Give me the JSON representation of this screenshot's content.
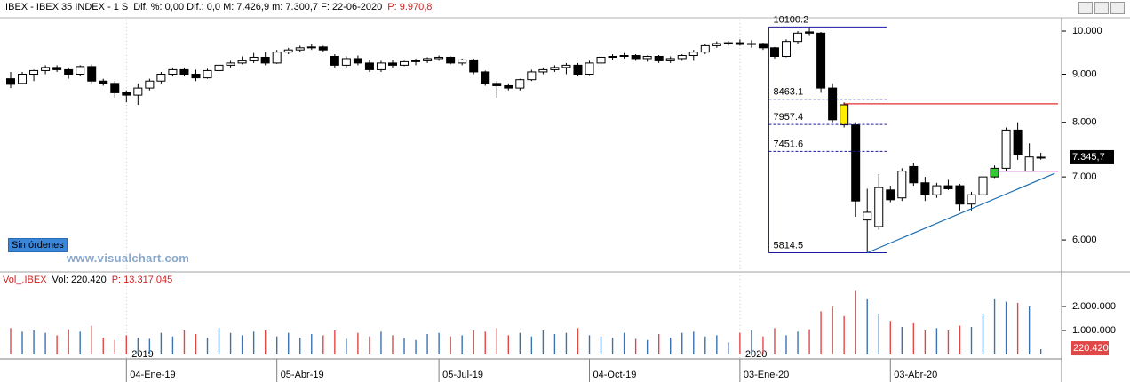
{
  "header": {
    "symbol": ".IBEX - IBEX 35 INDEX - 1 S",
    "stats": "Dif. %: 0,00  Dif.: 0,0  M: 7.426,9  m: 7.300,7  F: 22-06-2020",
    "prev": "P: 9.970,8"
  },
  "volume_header": {
    "name": "Vol_.IBEX",
    "last": "Vol: 220.420",
    "prev": "P: 13.317.045"
  },
  "button": "Sin órdenes",
  "watermark": "www.visualchart.com",
  "chart_data": {
    "type": "candlestick",
    "ylog": true,
    "x": [
      null,
      null,
      null,
      null,
      null,
      null,
      null,
      null,
      null,
      null,
      "04-Ene-19",
      null,
      null,
      null,
      null,
      null,
      null,
      null,
      null,
      null,
      null,
      null,
      null,
      "05-Abr-19",
      null,
      null,
      null,
      null,
      null,
      null,
      null,
      null,
      null,
      null,
      null,
      null,
      null,
      "05-Jul-19",
      null,
      null,
      null,
      null,
      null,
      null,
      null,
      null,
      null,
      null,
      null,
      null,
      "04-Oct-19",
      null,
      null,
      null,
      null,
      null,
      null,
      null,
      null,
      null,
      null,
      null,
      null,
      "03-Ene-20",
      null,
      null,
      null,
      null,
      null,
      null,
      null,
      null,
      null,
      null,
      null,
      null,
      "03-Abr-20",
      null,
      null,
      null,
      null,
      null,
      null,
      null,
      null,
      null,
      null,
      null,
      null,
      null
    ],
    "years": [
      {
        "label": "2019",
        "index": 10
      },
      {
        "label": "2020",
        "index": 63
      }
    ],
    "open": [
      8900,
      8800,
      9000,
      9080,
      9150,
      9100,
      9000,
      9170,
      8850,
      8800,
      8600,
      8550,
      8700,
      8850,
      9000,
      9100,
      9000,
      8920,
      9080,
      9200,
      9250,
      9300,
      9380,
      9250,
      9500,
      9550,
      9600,
      9620,
      9400,
      9200,
      9350,
      9250,
      9100,
      9250,
      9200,
      9280,
      9300,
      9350,
      9380,
      9250,
      9320,
      9050,
      8800,
      8750,
      8700,
      8880,
      9050,
      9100,
      9150,
      9200,
      9000,
      9250,
      9380,
      9400,
      9420,
      9350,
      9400,
      9300,
      9350,
      9420,
      9500,
      9650,
      9700,
      9720,
      9680,
      9700,
      9600,
      9400,
      9750,
      9980,
      9950,
      8700,
      8350,
      7950,
      6300,
      6200,
      6780,
      6650,
      7180,
      6900,
      6700,
      6850,
      6850,
      6550,
      6700,
      7000,
      7150,
      7850,
      7100,
      7345.7
    ],
    "high": [
      9050,
      9050,
      9100,
      9200,
      9200,
      9150,
      9200,
      9220,
      8900,
      8850,
      8650,
      8800,
      8900,
      9050,
      9150,
      9150,
      9100,
      9120,
      9220,
      9300,
      9400,
      9480,
      9500,
      9550,
      9600,
      9650,
      9680,
      9650,
      9450,
      9400,
      9420,
      9320,
      9300,
      9320,
      9300,
      9350,
      9380,
      9420,
      9400,
      9350,
      9350,
      9080,
      8850,
      8800,
      8900,
      9100,
      9150,
      9200,
      9250,
      9250,
      9300,
      9400,
      9450,
      9480,
      9450,
      9420,
      9430,
      9400,
      9450,
      9550,
      9700,
      9750,
      9760,
      9800,
      9780,
      9720,
      9620,
      9800,
      10000,
      10100.2,
      9980,
      8800,
      8400,
      8000,
      6800,
      7050,
      6850,
      7150,
      7250,
      7000,
      6900,
      6950,
      6880,
      6750,
      7050,
      7200,
      7900,
      8000,
      7600,
      7426.9
    ],
    "low": [
      8700,
      8780,
      8850,
      9000,
      9050,
      8900,
      8950,
      8800,
      8750,
      8500,
      8400,
      8350,
      8650,
      8800,
      8950,
      8950,
      8850,
      8900,
      9050,
      9150,
      9220,
      9250,
      9200,
      9230,
      9450,
      9500,
      9550,
      9500,
      9150,
      9150,
      9200,
      9050,
      9050,
      9150,
      9180,
      9200,
      9250,
      9300,
      9220,
      9200,
      9000,
      8750,
      8500,
      8650,
      8650,
      8850,
      9000,
      9050,
      9000,
      8950,
      8980,
      9200,
      9320,
      9350,
      9300,
      9280,
      9250,
      9250,
      9300,
      9300,
      9450,
      9600,
      9650,
      9650,
      9600,
      9550,
      9350,
      9380,
      9700,
      9900,
      8600,
      8000,
      7900,
      6350,
      5814.5,
      6150,
      6580,
      6600,
      6850,
      6600,
      6650,
      6780,
      6450,
      6450,
      6650,
      6980,
      7100,
      7300,
      7100,
      7300.7
    ],
    "close": [
      8780,
      9000,
      9080,
      9150,
      9100,
      9000,
      9170,
      8850,
      8800,
      8600,
      8550,
      8700,
      8850,
      9000,
      9100,
      9000,
      8920,
      9080,
      9200,
      9250,
      9300,
      9380,
      9250,
      9500,
      9550,
      9600,
      9620,
      9550,
      9200,
      9350,
      9250,
      9100,
      9250,
      9200,
      9280,
      9300,
      9350,
      9380,
      9250,
      9320,
      9050,
      8800,
      8750,
      8700,
      8880,
      9050,
      9100,
      9150,
      9200,
      9000,
      9250,
      9380,
      9400,
      9420,
      9350,
      9400,
      9300,
      9350,
      9420,
      9500,
      9650,
      9700,
      9720,
      9680,
      9700,
      9600,
      9400,
      9750,
      9950,
      9950,
      8700,
      8050,
      7950,
      6600,
      6420,
      6820,
      6620,
      7100,
      6900,
      6700,
      6850,
      6800,
      6550,
      6700,
      7000,
      7150,
      7850,
      7400,
      7350,
      7345.7
    ],
    "up_color": "#ffffff",
    "down_color": "#000000",
    "highlights": [
      {
        "index": 72,
        "color": "#ffee00"
      },
      {
        "index": 85,
        "color": "#33cc33"
      }
    ],
    "ylim": [
      5622,
      10287
    ],
    "yticks": [
      {
        "value": 6000,
        "label": "6.000"
      },
      {
        "value": 7000,
        "label": "7.000"
      },
      {
        "value": 8000,
        "label": "8.000"
      },
      {
        "value": 9000,
        "label": "9.000"
      },
      {
        "value": 10000,
        "label": "10.000"
      }
    ],
    "last_price": {
      "value": 7345.7,
      "label": "7.345,7"
    },
    "fib": {
      "levels": [
        10100.2,
        8463.1,
        7957.4,
        7451.6,
        5814.5
      ],
      "from": 65.5,
      "to": 75.7,
      "color": "#1a1aa0"
    },
    "hlines": [
      {
        "value": 8370,
        "from": 72,
        "color": "#e03030"
      },
      {
        "value": 7100,
        "from": 85,
        "color": "#cc33cc"
      }
    ],
    "trendline": {
      "points": [
        [
          74,
          5814.5
        ],
        [
          90.2,
          7060
        ]
      ],
      "color": "#1f6fb0"
    },
    "volume": {
      "values": [
        1100000,
        950000,
        1000000,
        900000,
        800000,
        1050000,
        950000,
        1200000,
        700000,
        600000,
        800000,
        700000,
        650000,
        900000,
        750000,
        1000000,
        850000,
        700000,
        1100000,
        900000,
        800000,
        950000,
        1000000,
        750000,
        900000,
        700000,
        850000,
        800000,
        1000000,
        650000,
        900000,
        750000,
        950000,
        800000,
        700000,
        600000,
        850000,
        900000,
        750000,
        800000,
        1000000,
        950000,
        1100000,
        800000,
        900000,
        750000,
        1000000,
        850000,
        900000,
        1100000,
        800000,
        750000,
        700000,
        900000,
        650000,
        600000,
        850000,
        700000,
        900000,
        950000,
        750000,
        800000,
        500000,
        900000,
        1000000,
        750000,
        1100000,
        800000,
        950000,
        1050000,
        1800000,
        2000000,
        1600000,
        2650000,
        2300000,
        1700000,
        1400000,
        1150000,
        1300000,
        1000000,
        1100000,
        1000000,
        1200000,
        1150000,
        1700000,
        2300000,
        2200000,
        2150000,
        2000000,
        220420
      ],
      "ylim": [
        0,
        2925000
      ],
      "yticks": [
        {
          "value": 1000000,
          "label": "1.000.000"
        },
        {
          "value": 2000000,
          "label": "2.000.000"
        }
      ],
      "last_label": "220.420",
      "up_color": "#3c72b0",
      "down_color": "#e04848"
    }
  }
}
